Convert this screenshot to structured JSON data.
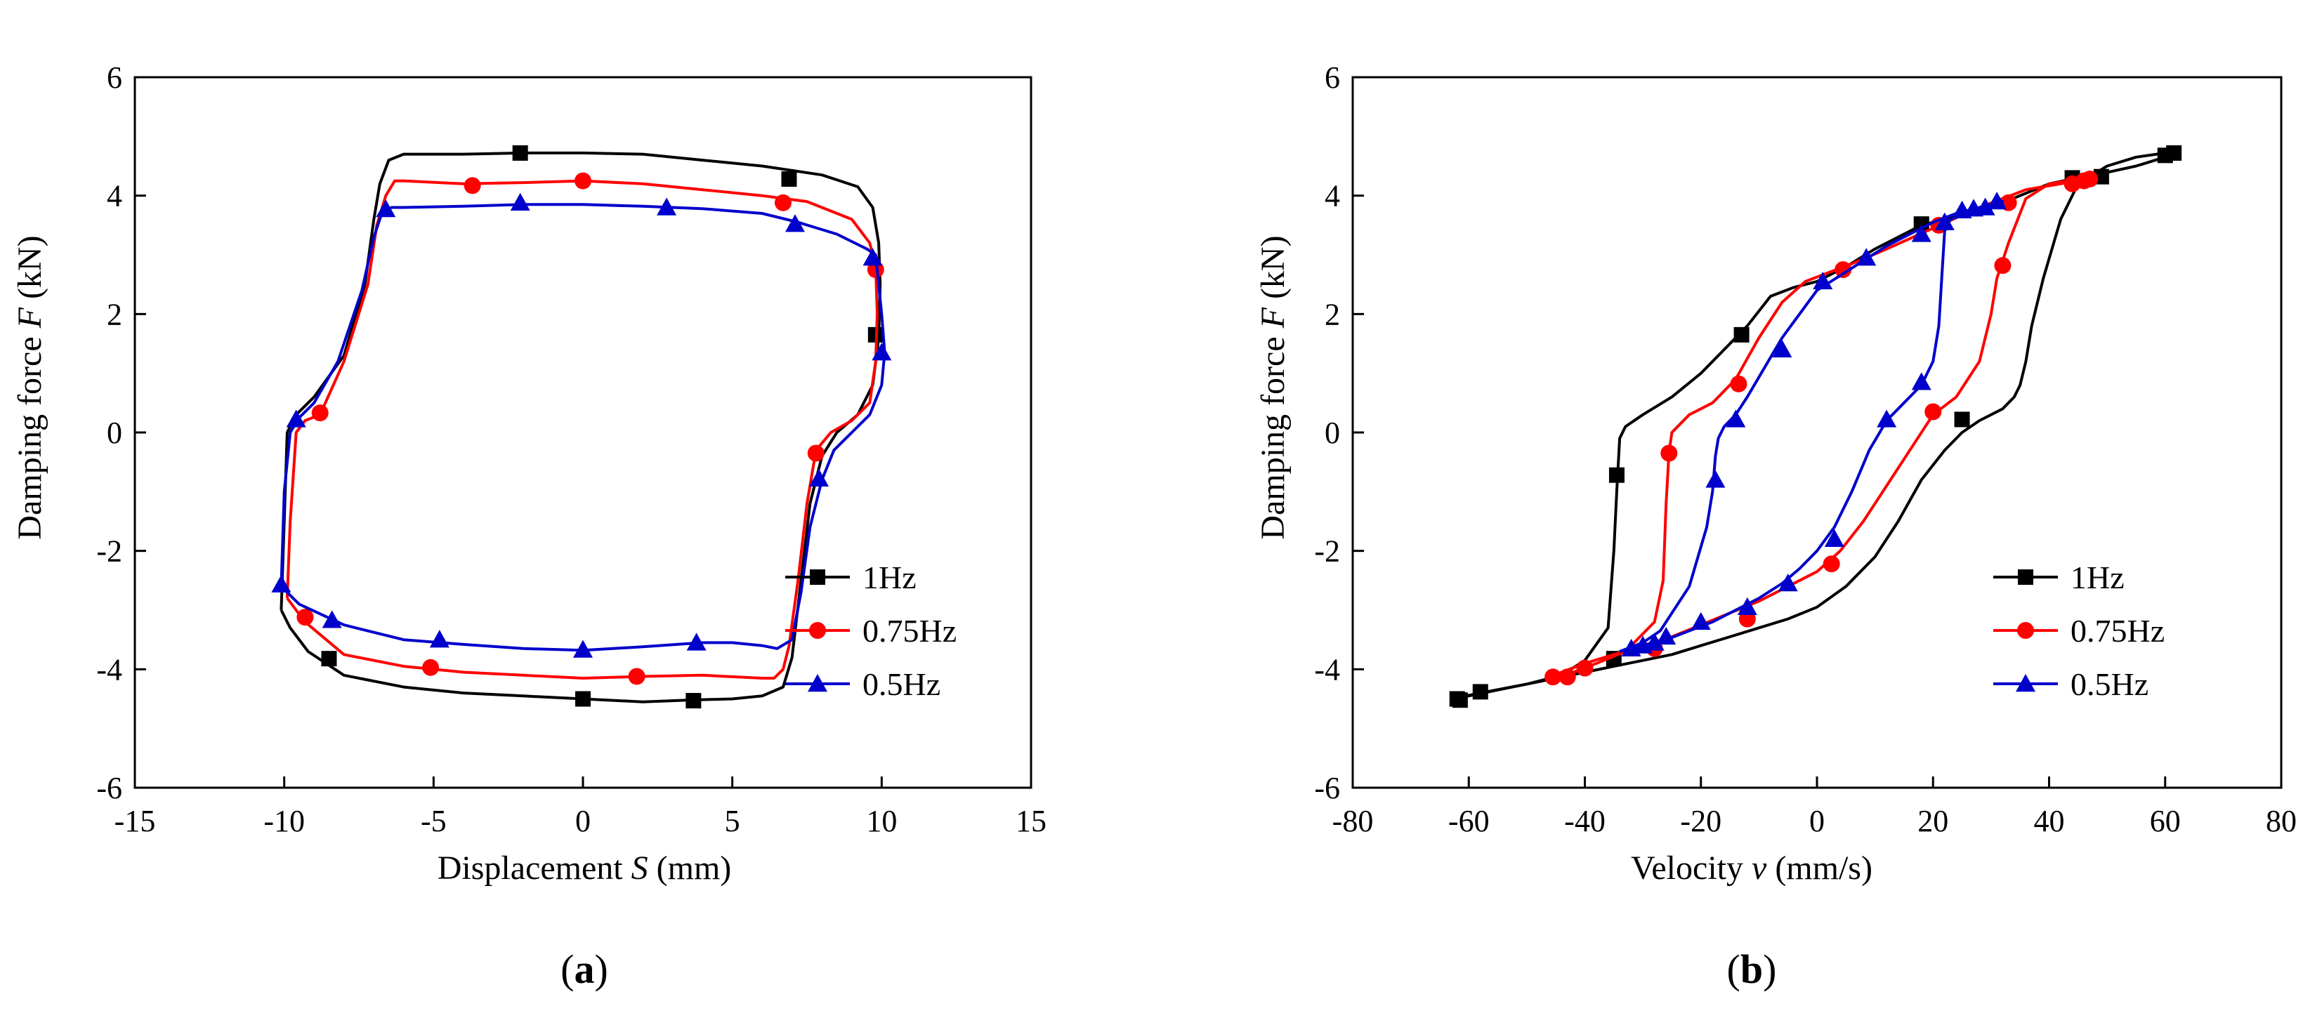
{
  "chart_data": [
    {
      "type": "line",
      "panel_label": "a",
      "xlabel_prefix": "Displacement ",
      "xlabel_var": "S",
      "xlabel_suffix": " (mm)",
      "ylabel_prefix": "Damping force ",
      "ylabel_var": "F",
      "ylabel_suffix": " (kN)",
      "xlim": [
        -15,
        15
      ],
      "ylim": [
        -6,
        6
      ],
      "xticks": [
        -15,
        -10,
        -5,
        0,
        5,
        10,
        15
      ],
      "yticks": [
        -6,
        -4,
        -2,
        0,
        2,
        4,
        6
      ],
      "grid": false,
      "legend_position": "lower-right",
      "series": [
        {
          "name": "1Hz",
          "color": "#000000",
          "marker": "square",
          "x": [
            -10.1,
            -10.0,
            -9.9,
            -9.6,
            -9.0,
            -8.0,
            -7.3,
            -7.0,
            -6.8,
            -6.5,
            -6.0,
            -4.0,
            -2.0,
            0.0,
            2.0,
            4.0,
            6.0,
            8.0,
            9.2,
            9.7,
            9.9,
            9.95,
            9.9,
            9.7,
            9.2,
            8.5,
            8.0,
            7.6,
            7.3,
            7.0,
            6.7,
            6.0,
            5.0,
            3.5,
            2.0,
            0.0,
            -2.0,
            -4.0,
            -6.0,
            -8.0,
            -9.2,
            -9.8,
            -10.1
          ],
          "y": [
            -3.0,
            -1.5,
            0.0,
            0.3,
            0.6,
            1.3,
            2.5,
            3.6,
            4.2,
            4.6,
            4.7,
            4.7,
            4.72,
            4.72,
            4.7,
            4.6,
            4.5,
            4.35,
            4.15,
            3.8,
            3.2,
            2.5,
            1.6,
            0.8,
            0.3,
            0.0,
            -0.4,
            -1.2,
            -2.5,
            -3.8,
            -4.3,
            -4.45,
            -4.5,
            -4.52,
            -4.55,
            -4.5,
            -4.45,
            -4.4,
            -4.3,
            -4.1,
            -3.7,
            -3.3,
            -3.0
          ],
          "marker_x": [
            -2.1,
            6.9,
            9.8,
            -8.5,
            0.0,
            3.7
          ],
          "marker_y": [
            4.72,
            4.28,
            1.65,
            -3.82,
            -4.5,
            -4.53
          ]
        },
        {
          "name": "0.75Hz",
          "color": "#ff0000",
          "marker": "circle",
          "x": [
            -9.9,
            -9.8,
            -9.6,
            -9.3,
            -8.8,
            -8.0,
            -7.2,
            -6.9,
            -6.6,
            -6.3,
            -6.0,
            -4.0,
            -2.0,
            0.0,
            2.0,
            4.0,
            6.0,
            7.5,
            9.0,
            9.6,
            9.8,
            9.85,
            9.8,
            9.6,
            9.0,
            8.3,
            7.8,
            7.5,
            7.2,
            6.9,
            6.7,
            6.4,
            6.0,
            4.0,
            2.0,
            0.0,
            -2.0,
            -4.0,
            -6.0,
            -8.0,
            -9.3,
            -9.9
          ],
          "y": [
            -2.8,
            -1.5,
            0.0,
            0.2,
            0.3,
            1.2,
            2.5,
            3.5,
            4.0,
            4.25,
            4.25,
            4.2,
            4.22,
            4.25,
            4.2,
            4.1,
            4.0,
            3.9,
            3.6,
            3.2,
            2.8,
            2.0,
            1.2,
            0.5,
            0.2,
            0.0,
            -0.3,
            -1.2,
            -2.5,
            -3.6,
            -4.0,
            -4.15,
            -4.15,
            -4.1,
            -4.12,
            -4.15,
            -4.1,
            -4.05,
            -3.95,
            -3.75,
            -3.2,
            -2.8
          ],
          "marker_x": [
            -3.7,
            0.0,
            6.7,
            9.8,
            -8.8,
            7.8,
            -9.3,
            -5.1,
            1.8
          ],
          "marker_y": [
            4.17,
            4.25,
            3.88,
            2.75,
            0.33,
            -0.35,
            -3.12,
            -3.97,
            -4.12
          ]
        },
        {
          "name": "0.5Hz",
          "color": "#0000cc",
          "marker": "triangle",
          "x": [
            -10.1,
            -10.0,
            -9.8,
            -9.5,
            -9.0,
            -8.2,
            -7.4,
            -7.0,
            -6.7,
            -6.4,
            -6.0,
            -4.0,
            -2.0,
            0.0,
            2.0,
            4.0,
            6.0,
            7.2,
            8.5,
            9.5,
            9.8,
            10.0,
            10.1,
            10.0,
            9.6,
            9.0,
            8.4,
            8.0,
            7.6,
            7.3,
            7.0,
            6.5,
            6.0,
            5.0,
            4.0,
            2.0,
            0.0,
            -2.0,
            -4.0,
            -6.0,
            -8.0,
            -9.5,
            -10.1
          ],
          "y": [
            -2.6,
            -1.0,
            0.0,
            0.25,
            0.5,
            1.2,
            2.4,
            3.3,
            3.75,
            3.8,
            3.8,
            3.82,
            3.85,
            3.85,
            3.82,
            3.78,
            3.7,
            3.55,
            3.35,
            3.1,
            3.0,
            2.0,
            1.35,
            0.8,
            0.3,
            0.0,
            -0.3,
            -0.8,
            -1.6,
            -2.7,
            -3.5,
            -3.65,
            -3.6,
            -3.55,
            -3.55,
            -3.62,
            -3.68,
            -3.65,
            -3.58,
            -3.5,
            -3.25,
            -2.9,
            -2.6
          ],
          "marker_x": [
            -6.6,
            -2.1,
            2.8,
            7.1,
            9.7,
            10.0,
            -9.6,
            7.9,
            -10.1,
            -8.4,
            -4.8,
            0.0,
            3.8
          ],
          "marker_y": [
            3.77,
            3.88,
            3.8,
            3.52,
            2.95,
            1.35,
            0.22,
            -0.78,
            -2.57,
            -3.17,
            -3.5,
            -3.67,
            -3.55
          ]
        }
      ]
    },
    {
      "type": "line",
      "panel_label": "b",
      "xlabel_prefix": "Velocity ",
      "xlabel_var": "v",
      "xlabel_suffix": " (mm/s)",
      "ylabel_prefix": "Damping force ",
      "ylabel_var": "F",
      "ylabel_suffix": " (kN)",
      "xlim": [
        -80,
        80
      ],
      "ylim": [
        -6,
        6
      ],
      "xticks": [
        -80,
        -60,
        -40,
        -20,
        0,
        20,
        40,
        60,
        80
      ],
      "yticks": [
        -6,
        -4,
        -2,
        0,
        2,
        4,
        6
      ],
      "grid": false,
      "legend_position": "lower-right",
      "series": [
        {
          "name": "1Hz",
          "color": "#000000",
          "marker": "square",
          "x": [
            -63,
            -58,
            -50,
            -44,
            -40,
            -36,
            -35,
            -34.5,
            -34,
            -33,
            -30,
            -25,
            -20,
            -15,
            -12,
            -8,
            -4,
            0,
            5,
            10,
            18,
            30,
            40,
            45,
            48,
            55,
            60,
            62,
            60,
            55,
            50,
            45,
            42,
            39,
            37,
            36,
            35,
            34,
            32,
            28,
            25,
            22,
            18,
            14,
            10,
            5,
            0,
            -5,
            -10,
            -15,
            -20,
            -25,
            -30,
            -35,
            -40,
            -45,
            -50,
            -55,
            -60,
            -63
          ],
          "y": [
            -4.5,
            -4.4,
            -4.25,
            -4.1,
            -3.85,
            -3.3,
            -2.0,
            -1.0,
            -0.1,
            0.1,
            0.3,
            0.6,
            1.0,
            1.5,
            1.8,
            2.3,
            2.45,
            2.55,
            2.8,
            3.1,
            3.5,
            3.8,
            4.2,
            4.3,
            4.35,
            4.5,
            4.65,
            4.75,
            4.72,
            4.65,
            4.5,
            4.2,
            3.6,
            2.6,
            1.8,
            1.2,
            0.8,
            0.6,
            0.4,
            0.2,
            0.0,
            -0.3,
            -0.8,
            -1.5,
            -2.1,
            -2.6,
            -2.95,
            -3.15,
            -3.3,
            -3.45,
            -3.6,
            -3.75,
            -3.85,
            -3.95,
            -4.05,
            -4.15,
            -4.25,
            -4.35,
            -4.45,
            -4.5
          ],
          "marker_x": [
            -62,
            -58,
            -34.5,
            -35,
            -13,
            18,
            25,
            44,
            49,
            60,
            61.5,
            -61.5
          ],
          "marker_y": [
            -4.5,
            -4.38,
            -0.72,
            -3.82,
            1.65,
            3.52,
            0.22,
            4.3,
            4.32,
            4.68,
            4.72,
            -4.52
          ]
        },
        {
          "name": "0.75Hz",
          "color": "#ff0000",
          "marker": "circle",
          "x": [
            -46,
            -42,
            -38,
            -33,
            -28,
            -26.5,
            -26,
            -25.5,
            -25,
            -22,
            -18,
            -14,
            -10,
            -6,
            -2,
            2,
            6,
            12,
            20,
            28,
            36,
            42,
            46,
            47,
            45,
            40,
            36,
            33,
            31,
            30,
            28,
            24,
            20,
            16,
            12,
            8,
            4,
            0,
            -5,
            -10,
            -15,
            -20,
            -25,
            -30,
            -35,
            -40,
            -44,
            -46
          ],
          "y": [
            -4.15,
            -4.05,
            -3.9,
            -3.7,
            -3.2,
            -2.5,
            -1.2,
            -0.35,
            0.0,
            0.3,
            0.5,
            0.9,
            1.6,
            2.2,
            2.55,
            2.7,
            2.85,
            3.1,
            3.45,
            3.8,
            4.1,
            4.2,
            4.28,
            4.3,
            4.28,
            4.2,
            3.95,
            3.2,
            2.6,
            2.0,
            1.2,
            0.6,
            0.3,
            -0.3,
            -0.9,
            -1.5,
            -2.0,
            -2.35,
            -2.6,
            -2.85,
            -3.05,
            -3.25,
            -3.45,
            -3.6,
            -3.75,
            -3.9,
            -4.05,
            -4.15
          ],
          "marker_x": [
            -45.5,
            -43,
            -40,
            -28,
            -25.5,
            -13.5,
            4.5,
            21,
            32,
            33,
            44,
            46,
            47,
            20,
            2.5,
            -12
          ],
          "marker_y": [
            -4.13,
            -4.13,
            -3.98,
            -3.65,
            -0.35,
            0.82,
            2.75,
            3.5,
            2.82,
            3.88,
            4.2,
            4.25,
            4.28,
            0.35,
            -2.22,
            -3.15
          ]
        },
        {
          "name": "0.5Hz",
          "color": "#0000cc",
          "marker": "triangle",
          "x": [
            -34,
            -30,
            -27,
            -22,
            -19,
            -18,
            -17.5,
            -17,
            -16,
            -14,
            -12,
            -9,
            -6,
            -3,
            0,
            4,
            8,
            12,
            16,
            20,
            24,
            28,
            32,
            30,
            26,
            23,
            22,
            21.5,
            21,
            20,
            18,
            15,
            12,
            9,
            6,
            3,
            0,
            -3,
            -6,
            -10,
            -14,
            -18,
            -22,
            -26,
            -30,
            -34
          ],
          "y": [
            -3.7,
            -3.55,
            -3.35,
            -2.6,
            -1.6,
            -1.0,
            -0.4,
            -0.1,
            0.1,
            0.3,
            0.6,
            1.1,
            1.6,
            2.0,
            2.4,
            2.65,
            2.9,
            3.15,
            3.35,
            3.55,
            3.7,
            3.8,
            3.9,
            3.85,
            3.7,
            3.6,
            3.4,
            2.6,
            1.8,
            1.2,
            0.8,
            0.5,
            0.2,
            -0.3,
            -1.0,
            -1.6,
            -2.0,
            -2.3,
            -2.55,
            -2.8,
            -3.0,
            -3.2,
            -3.35,
            -3.5,
            -3.6,
            -3.7
          ],
          "marker_x": [
            -32,
            -30,
            -28,
            -14,
            -6,
            1,
            8.5,
            18,
            -17.5,
            22,
            25,
            27,
            29,
            31,
            12,
            18,
            3,
            -5,
            -12,
            -20,
            -26
          ],
          "marker_y": [
            -3.65,
            -3.6,
            -3.55,
            0.22,
            1.4,
            2.55,
            2.95,
            3.35,
            -0.8,
            3.55,
            3.75,
            3.78,
            3.8,
            3.9,
            0.22,
            0.85,
            -1.8,
            -2.55,
            -2.95,
            -3.2,
            -3.45
          ]
        }
      ]
    }
  ]
}
